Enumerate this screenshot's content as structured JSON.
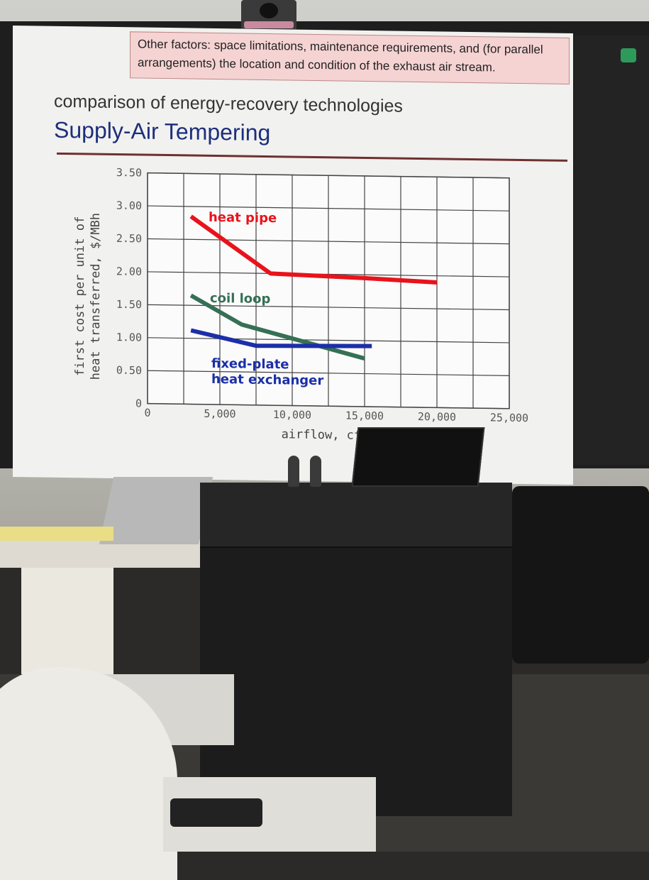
{
  "note": {
    "line1": "Other factors: space limitations, maintenance requirements, and (for parallel",
    "line2": "arrangements) the location and condition of the exhaust air stream."
  },
  "slide": {
    "subtitle": "comparison of energy-recovery technologies",
    "title": "Supply-Air Tempering"
  },
  "colors": {
    "heat_pipe": "#e8131b",
    "coil_loop": "#357055",
    "fixed_plate": "#1c2fa8",
    "title": "#1d2e7c"
  },
  "chart_data": {
    "type": "line",
    "title": "",
    "xlabel": "airflow, cfm",
    "ylabel_line1": "first cost per unit of",
    "ylabel_line2": "heat transferred, $/MBh",
    "xlim": [
      0,
      25000
    ],
    "ylim": [
      0,
      3.5
    ],
    "x_ticks": [
      "0",
      "5,000",
      "10,000",
      "15,000",
      "20,000",
      "25,000"
    ],
    "y_ticks": [
      "0",
      "0.50",
      "1.00",
      "1.50",
      "2.00",
      "2.50",
      "3.00",
      "3.50"
    ],
    "grid": true,
    "series": [
      {
        "name": "heat pipe",
        "color": "#e8131b",
        "points": [
          [
            3000,
            2.85
          ],
          [
            8500,
            2.0
          ],
          [
            15000,
            1.95
          ],
          [
            20000,
            1.9
          ]
        ]
      },
      {
        "name": "coil loop",
        "color": "#357055",
        "points": [
          [
            3000,
            1.65
          ],
          [
            6500,
            1.22
          ],
          [
            15000,
            0.73
          ]
        ]
      },
      {
        "name_line1": "fixed-plate",
        "name_line2": "heat exchanger",
        "color": "#1c2fa8",
        "points": [
          [
            3000,
            1.12
          ],
          [
            7500,
            0.9
          ],
          [
            15500,
            0.92
          ]
        ]
      }
    ]
  }
}
